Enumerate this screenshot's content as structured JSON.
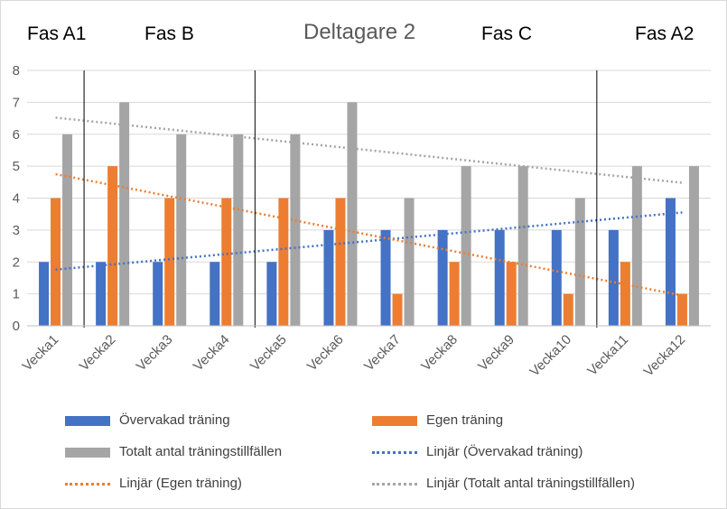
{
  "chart_data": {
    "type": "bar",
    "title": "Deltagare 2",
    "phases": [
      "Fas A1",
      "Fas B",
      "Fas C",
      "Fas A2"
    ],
    "categories": [
      "Vecka1",
      "Vecka2",
      "Vecka3",
      "Vecka4",
      "Vecka5",
      "Vecka6",
      "Vecka7",
      "Vecka8",
      "Vecka9",
      "Vecka10",
      "Vecka11",
      "Vecka12"
    ],
    "series": [
      {
        "name": "Övervakad träning",
        "color": "#4472C4",
        "values": [
          2,
          2,
          2,
          2,
          2,
          3,
          3,
          3,
          3,
          3,
          3,
          4
        ]
      },
      {
        "name": "Egen träning",
        "color": "#ED7D31",
        "values": [
          4,
          5,
          4,
          4,
          4,
          4,
          1,
          2,
          2,
          1,
          2,
          1
        ]
      },
      {
        "name": "Totalt antal träningstillfällen",
        "color": "#A5A5A5",
        "values": [
          6,
          7,
          6,
          6,
          6,
          7,
          4,
          5,
          5,
          4,
          5,
          5
        ]
      }
    ],
    "trendlines": [
      {
        "name": "Linjär (Övervakad träning)",
        "color": "#4472C4",
        "start": 1.76,
        "end": 3.55
      },
      {
        "name": "Linjär (Egen träning)",
        "color": "#ED7D31",
        "start": 4.75,
        "end": 0.95
      },
      {
        "name": "Linjär (Totalt antal träningstillfällen)",
        "color": "#A5A5A5",
        "start": 6.52,
        "end": 4.48
      }
    ],
    "phase_dividers_after": [
      "Vecka1",
      "Vecka4",
      "Vecka10"
    ],
    "ylim": [
      0,
      8
    ],
    "yticks": [
      0,
      1,
      2,
      3,
      4,
      5,
      6,
      7,
      8
    ],
    "xlabel": "",
    "ylabel": "",
    "legend_position": "bottom"
  }
}
